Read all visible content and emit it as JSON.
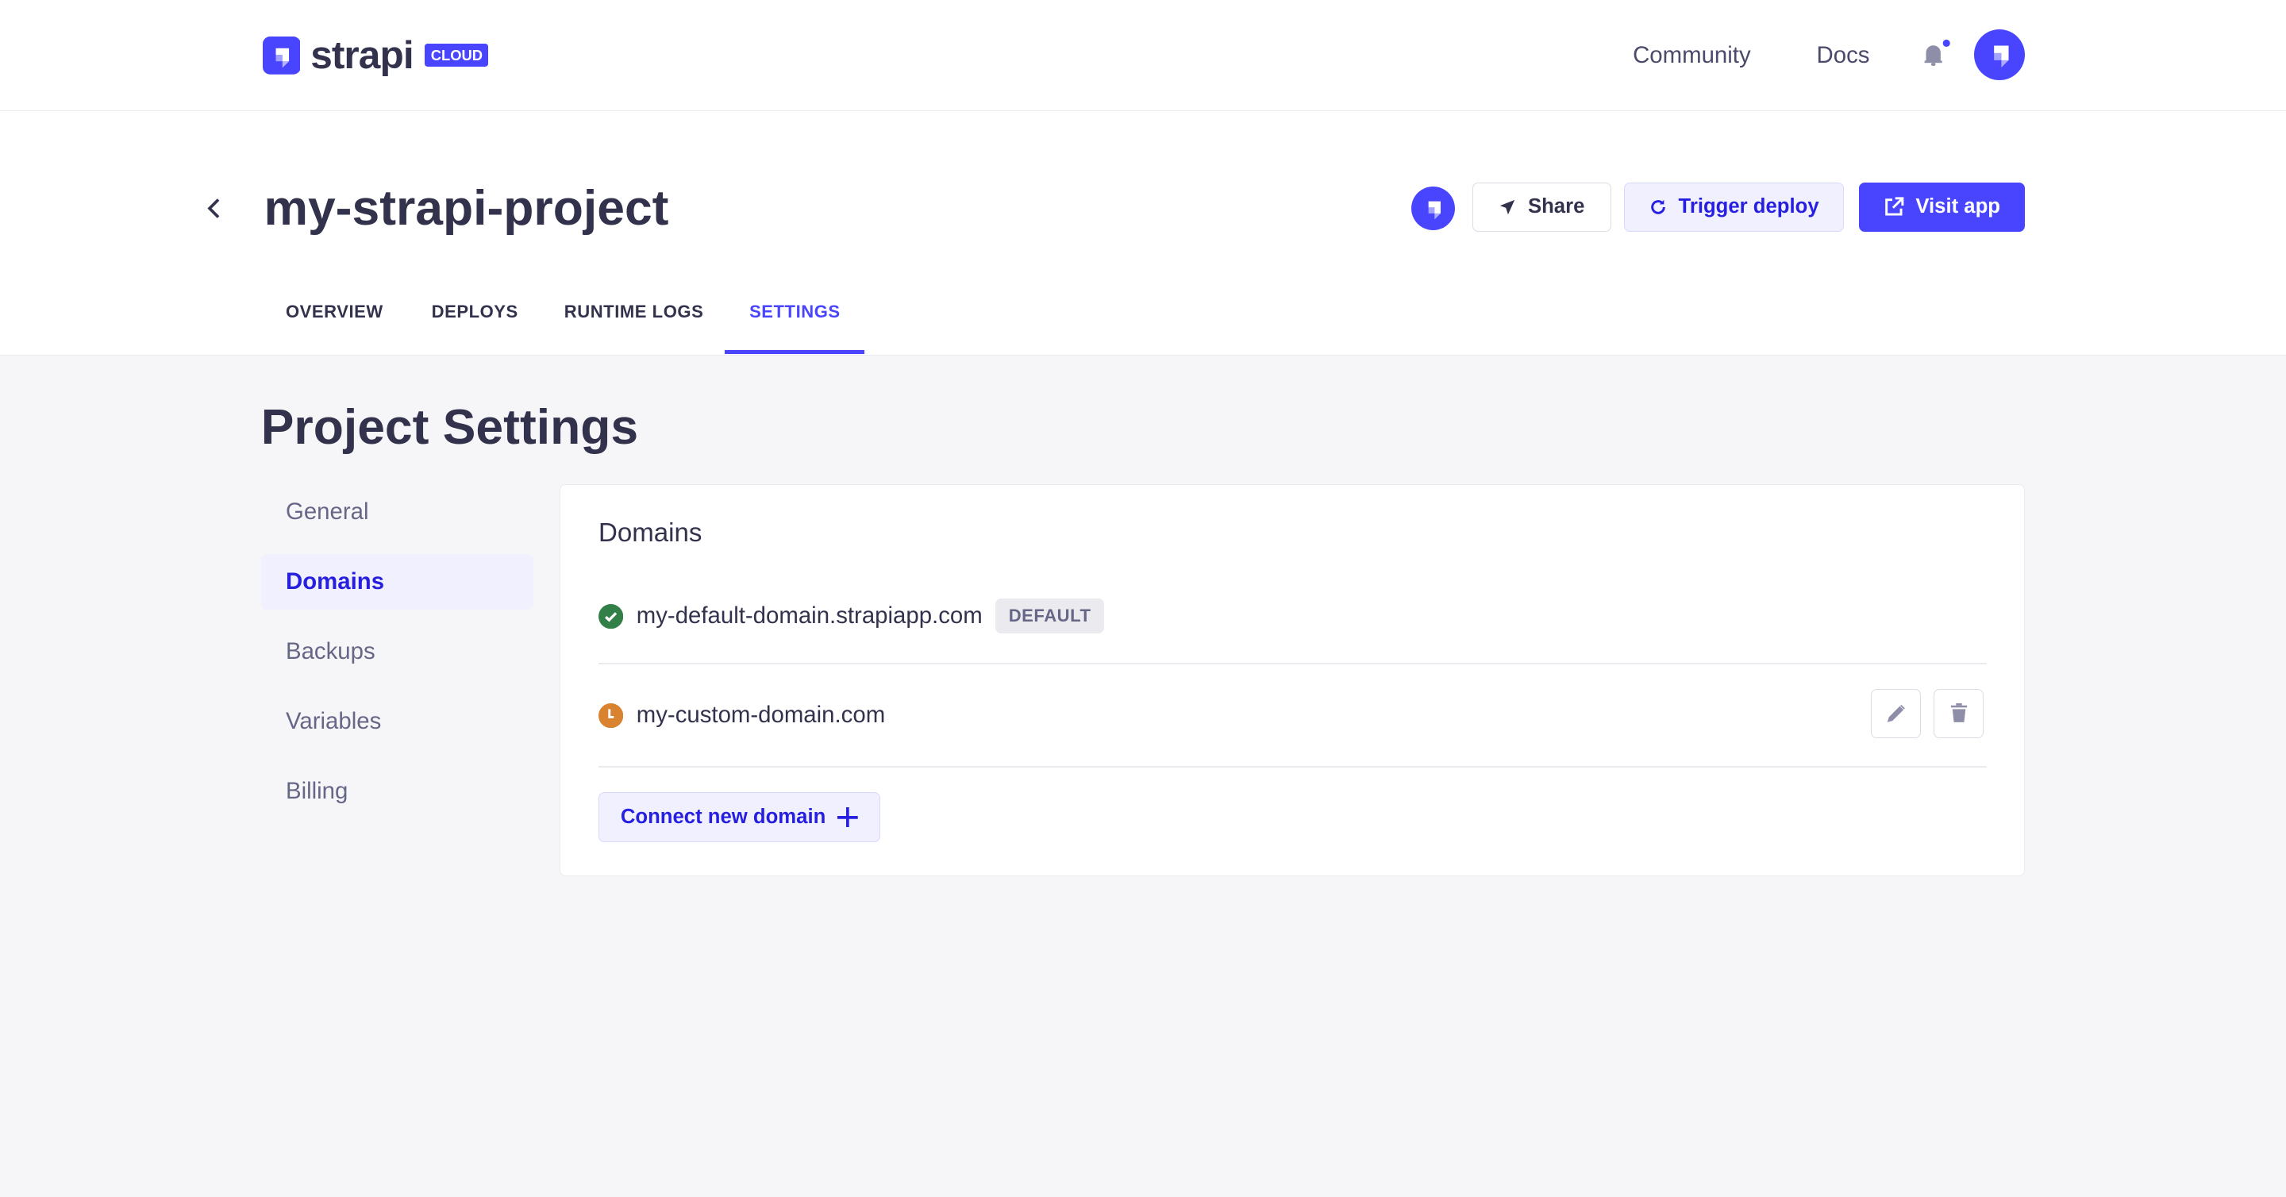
{
  "brand": {
    "name": "strapi",
    "badge": "CLOUD",
    "accent": "#4945ff"
  },
  "topnav": {
    "community": "Community",
    "docs": "Docs",
    "notification_icon": "bell-icon",
    "has_unread": true
  },
  "project": {
    "title": "my-strapi-project",
    "actions": {
      "share": "Share",
      "trigger_deploy": "Trigger deploy",
      "visit_app": "Visit app"
    },
    "tabs": [
      {
        "label": "OVERVIEW",
        "active": false
      },
      {
        "label": "DEPLOYS",
        "active": false
      },
      {
        "label": "RUNTIME LOGS",
        "active": false
      },
      {
        "label": "SETTINGS",
        "active": true
      }
    ]
  },
  "settings": {
    "title": "Project Settings",
    "menu": [
      {
        "label": "General",
        "active": false
      },
      {
        "label": "Domains",
        "active": true
      },
      {
        "label": "Backups",
        "active": false
      },
      {
        "label": "Variables",
        "active": false
      },
      {
        "label": "Billing",
        "active": false
      }
    ],
    "domains": {
      "heading": "Domains",
      "items": [
        {
          "name": "my-default-domain.strapiapp.com",
          "status": "verified",
          "status_color": "#328048",
          "badge": "DEFAULT"
        },
        {
          "name": "my-custom-domain.com",
          "status": "pending",
          "status_color": "#d9822f"
        }
      ],
      "connect_label": "Connect new domain"
    }
  }
}
